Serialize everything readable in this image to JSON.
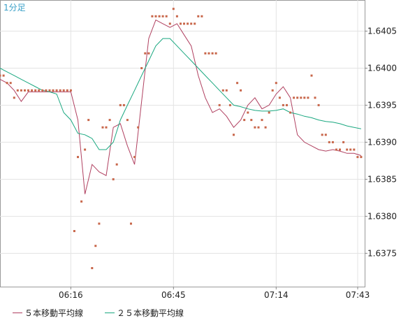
{
  "chart_data": {
    "type": "line",
    "title": "1分足",
    "xlabel": "",
    "ylabel": "",
    "ylim": [
      1.63705,
      1.64092
    ],
    "y_ticks": [
      "1.6375",
      "1.6380",
      "1.6385",
      "1.6390",
      "1.6395",
      "1.6400",
      "1.6405"
    ],
    "x_ticks": [
      "06:16",
      "06:45",
      "07:14",
      "07:43"
    ],
    "legend_position": "bottom-left",
    "grid": true,
    "colors": {
      "price": "#c8664a",
      "ma5": "#b04060",
      "ma25": "#1aa880",
      "grid": "#e3e3e3",
      "axis": "#888888"
    },
    "series": [
      {
        "name": "５本移動平均線",
        "kind": "line",
        "x": [
          0,
          2,
          4,
          6,
          8,
          10,
          12,
          14,
          16,
          18,
          20,
          22,
          24,
          26,
          28,
          30,
          32,
          34,
          36,
          38,
          40,
          42,
          44,
          46,
          48,
          50,
          52,
          54,
          56,
          58,
          60,
          62,
          64,
          66,
          68,
          70,
          72,
          74,
          76,
          78,
          80,
          82,
          84,
          86,
          88,
          90,
          92,
          94,
          96,
          98,
          100,
          102
        ],
        "values": [
          1.63985,
          1.6398,
          1.6397,
          1.63955,
          1.63968,
          1.63968,
          1.63968,
          1.63968,
          1.63968,
          1.63968,
          1.63968,
          1.6393,
          1.6383,
          1.6387,
          1.6386,
          1.63855,
          1.6392,
          1.63925,
          1.63895,
          1.6387,
          1.63955,
          1.6404,
          1.64065,
          1.6406,
          1.64055,
          1.6406,
          1.64045,
          1.6403,
          1.6399,
          1.6396,
          1.6394,
          1.63945,
          1.63935,
          1.6392,
          1.6393,
          1.6395,
          1.6396,
          1.63945,
          1.6395,
          1.63965,
          1.63975,
          1.6396,
          1.6391,
          1.639,
          1.63895,
          1.6389,
          1.63888,
          1.6389,
          1.63888,
          1.63885,
          1.63885,
          1.63882
        ]
      },
      {
        "name": "２５本移動平均線",
        "kind": "line",
        "x": [
          0,
          2,
          4,
          6,
          8,
          10,
          12,
          14,
          16,
          18,
          20,
          22,
          24,
          26,
          28,
          30,
          32,
          34,
          36,
          38,
          40,
          42,
          44,
          46,
          48,
          50,
          52,
          54,
          56,
          58,
          60,
          62,
          64,
          66,
          68,
          70,
          72,
          74,
          76,
          78,
          80,
          82,
          84,
          86,
          88,
          90,
          92,
          94,
          96,
          98,
          100,
          102
        ],
        "values": [
          1.64,
          1.63995,
          1.6399,
          1.63985,
          1.6398,
          1.63975,
          1.6397,
          1.63968,
          1.63965,
          1.6394,
          1.6393,
          1.63912,
          1.6391,
          1.63905,
          1.6389,
          1.6389,
          1.639,
          1.6393,
          1.6395,
          1.6397,
          1.6399,
          1.6401,
          1.6403,
          1.6404,
          1.6404,
          1.6403,
          1.6402,
          1.6401,
          1.64,
          1.6399,
          1.6398,
          1.6397,
          1.6396,
          1.6395,
          1.63948,
          1.63945,
          1.63943,
          1.63942,
          1.63942,
          1.63943,
          1.63945,
          1.6394,
          1.63938,
          1.63935,
          1.63933,
          1.6393,
          1.63928,
          1.63927,
          1.63925,
          1.63922,
          1.6392,
          1.63918
        ]
      },
      {
        "name": "",
        "kind": "points",
        "x": [
          0,
          1,
          2,
          3,
          4,
          5,
          6,
          7,
          8,
          9,
          10,
          11,
          12,
          13,
          14,
          15,
          16,
          17,
          18,
          19,
          20,
          21,
          22,
          23,
          24,
          25,
          26,
          27,
          28,
          29,
          30,
          31,
          32,
          33,
          34,
          35,
          36,
          37,
          38,
          39,
          40,
          41,
          42,
          43,
          44,
          45,
          46,
          47,
          48,
          49,
          50,
          51,
          52,
          53,
          54,
          55,
          56,
          57,
          58,
          59,
          60,
          61,
          62,
          63,
          64,
          65,
          66,
          67,
          68,
          69,
          70,
          71,
          72,
          73,
          74,
          75,
          76,
          77,
          78,
          79,
          80,
          81,
          82,
          83,
          84,
          85,
          86,
          87,
          88,
          89,
          90,
          91,
          92,
          93,
          94,
          95,
          96,
          97,
          98,
          99,
          100,
          101,
          102
        ],
        "values": [
          1.6399,
          1.6399,
          1.6398,
          1.6398,
          1.6396,
          1.6397,
          1.6397,
          1.6397,
          1.6397,
          1.6397,
          1.6397,
          1.6397,
          1.6397,
          1.6397,
          1.6397,
          1.6397,
          1.6397,
          1.6397,
          1.6397,
          1.6397,
          1.6397,
          1.6378,
          1.6388,
          1.6382,
          1.6389,
          1.6393,
          1.6373,
          1.6376,
          1.6379,
          1.6392,
          1.6392,
          1.6393,
          1.6385,
          1.6387,
          1.6395,
          1.6395,
          1.6393,
          1.6379,
          1.6388,
          1.6392,
          1.64,
          1.6402,
          1.6402,
          1.6407,
          1.6407,
          1.6407,
          1.6407,
          1.6407,
          1.6406,
          1.6408,
          1.6407,
          1.6406,
          1.6406,
          1.6406,
          1.6406,
          1.6406,
          1.6407,
          1.6407,
          1.6402,
          1.6402,
          1.6402,
          1.6402,
          1.6395,
          1.6397,
          1.6397,
          1.6395,
          1.6391,
          1.6398,
          1.6397,
          1.6393,
          1.6394,
          1.6393,
          1.6392,
          1.6392,
          1.6393,
          1.6392,
          1.6394,
          1.6397,
          1.6398,
          1.6396,
          1.6395,
          1.6395,
          1.6394,
          1.6396,
          1.6396,
          1.6396,
          1.6396,
          1.6396,
          1.6399,
          1.6396,
          1.6395,
          1.6391,
          1.6391,
          1.639,
          1.639,
          1.6389,
          1.6389,
          1.639,
          1.6389,
          1.6389,
          1.6389,
          1.6388,
          1.6388
        ]
      }
    ]
  }
}
